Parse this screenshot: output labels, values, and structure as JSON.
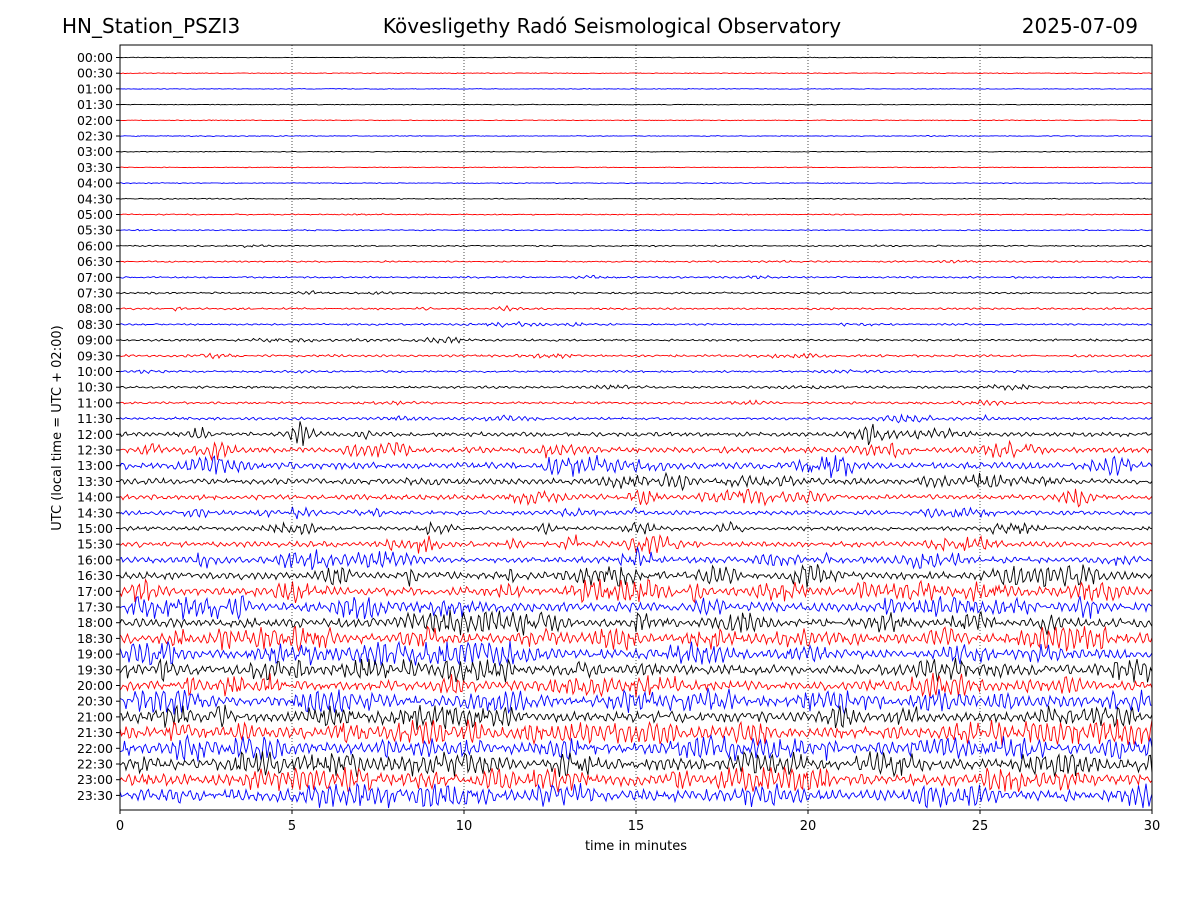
{
  "header": {
    "station": "HN_Station_PSZI3",
    "observatory": "Kövesligethy Radó Seismological Observatory",
    "date": "2025-07-09"
  },
  "chart_data": {
    "type": "line",
    "title": "Kövesligethy Radó Seismological Observatory",
    "xlabel": "time in minutes",
    "ylabel": "UTC (local time = UTC + 02:00)",
    "xlim": [
      0,
      30
    ],
    "xticks": [
      "0",
      "5",
      "10",
      "15",
      "20",
      "25",
      "30"
    ],
    "grid": "vertical dotted lines at 5-minute intervals",
    "row_labels": [
      "00:00",
      "00:30",
      "01:00",
      "01:30",
      "02:00",
      "02:30",
      "03:00",
      "03:30",
      "04:00",
      "04:30",
      "05:00",
      "05:30",
      "06:00",
      "06:30",
      "07:00",
      "07:30",
      "08:00",
      "08:30",
      "09:00",
      "09:30",
      "10:00",
      "10:30",
      "11:00",
      "11:30",
      "12:00",
      "12:30",
      "13:00",
      "13:30",
      "14:00",
      "14:30",
      "15:00",
      "15:30",
      "16:00",
      "16:30",
      "17:00",
      "17:30",
      "18:00",
      "18:30",
      "19:00",
      "19:30",
      "20:00",
      "20:30",
      "21:00",
      "21:30",
      "22:00",
      "22:30",
      "23:00",
      "23:30"
    ],
    "row_colors": [
      "#000000",
      "#ff0000",
      "#0000ff"
    ],
    "trace_activity": [
      0.01,
      0.01,
      0.01,
      0.01,
      0.01,
      0.02,
      0.01,
      0.01,
      0.02,
      0.03,
      0.04,
      0.04,
      0.06,
      0.07,
      0.08,
      0.08,
      0.09,
      0.09,
      0.1,
      0.11,
      0.1,
      0.11,
      0.11,
      0.13,
      0.22,
      0.3,
      0.36,
      0.3,
      0.28,
      0.22,
      0.22,
      0.3,
      0.33,
      0.4,
      0.45,
      0.5,
      0.48,
      0.52,
      0.5,
      0.52,
      0.5,
      0.55,
      0.55,
      0.62,
      0.6,
      0.62,
      0.6,
      0.6
    ]
  }
}
